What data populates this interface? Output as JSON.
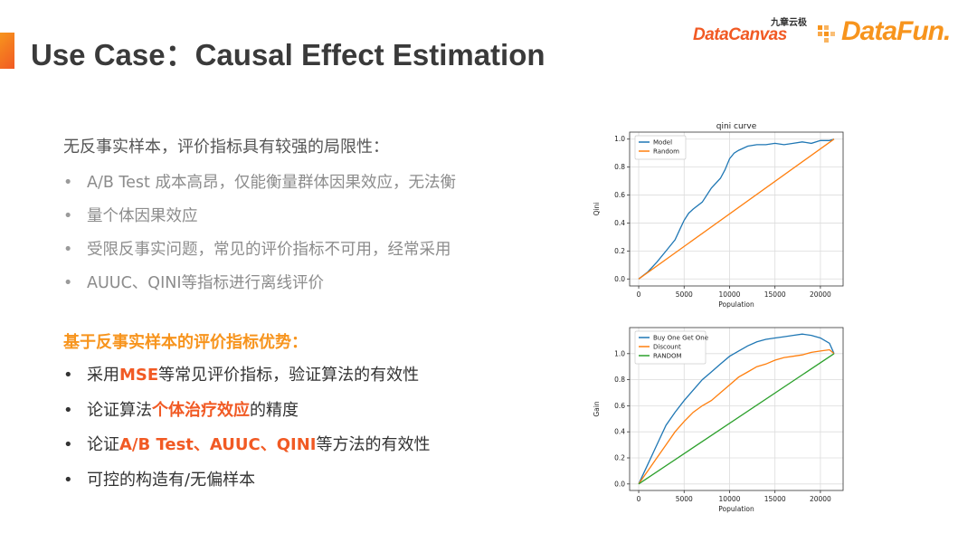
{
  "title": "Use Case：Causal Effect Estimation",
  "logos": {
    "datacanvas_cn": "九章云极",
    "datacanvas": "DataCanvas",
    "datafun": "DataFun."
  },
  "intro": "无反事实样本，评价指标具有较强的局限性：",
  "limitations": [
    {
      "line1": "A/B Test 成本高昂，仅能衡量群体因果效应，无法衡",
      "line2": "量个体因果效应"
    },
    {
      "line1": "受限反事实问题，常见的评价指标不可用，经常采用",
      "line2": "AUUC、QINI等指标进行离线评价"
    }
  ],
  "advantages_heading": "基于反事实样本的评价指标优势：",
  "advantages": [
    {
      "pre": "采用",
      "hl": "MSE",
      "post": "等常见评价指标，验证算法的有效性"
    },
    {
      "pre": "论证算法",
      "hl": "个体治疗效应",
      "post": "的精度"
    },
    {
      "pre": "论证",
      "hl": "A/B Test、AUUC、QINI",
      "post": "等方法的有效性"
    },
    {
      "pre": "可控的构造有/无偏样本",
      "hl": "",
      "post": ""
    }
  ],
  "chart_data": [
    {
      "type": "line",
      "title": "qini curve",
      "xlabel": "Population",
      "ylabel": "Qini",
      "xlim": [
        -1000,
        22500
      ],
      "ylim": [
        -0.05,
        1.05
      ],
      "xticks": [
        0,
        5000,
        10000,
        15000,
        20000
      ],
      "yticks": [
        0.0,
        0.2,
        0.4,
        0.6,
        0.8,
        1.0
      ],
      "ytick_labels": [
        "0.0",
        "0.2",
        "0.4",
        "0.6",
        "0.8",
        "1.0"
      ],
      "grid": true,
      "legend": "top-left",
      "series": [
        {
          "name": "Model",
          "color": "#1f77b4",
          "x": [
            0,
            1000,
            2000,
            3000,
            4000,
            4500,
            5000,
            5500,
            6000,
            7000,
            8000,
            9000,
            9500,
            10000,
            10500,
            11000,
            12000,
            13000,
            14000,
            15000,
            16000,
            17000,
            18000,
            19000,
            20000,
            21000,
            21500
          ],
          "y": [
            0.0,
            0.05,
            0.12,
            0.2,
            0.28,
            0.35,
            0.42,
            0.47,
            0.5,
            0.55,
            0.65,
            0.72,
            0.78,
            0.86,
            0.9,
            0.92,
            0.95,
            0.96,
            0.96,
            0.97,
            0.96,
            0.97,
            0.98,
            0.97,
            0.99,
            0.99,
            1.0
          ]
        },
        {
          "name": "Random",
          "color": "#ff7f0e",
          "x": [
            0,
            21500
          ],
          "y": [
            0.0,
            1.0
          ]
        }
      ]
    },
    {
      "type": "line",
      "title": "",
      "xlabel": "Population",
      "ylabel": "Gain",
      "xlim": [
        -1000,
        22500
      ],
      "ylim": [
        -0.05,
        1.2
      ],
      "xticks": [
        0,
        5000,
        10000,
        15000,
        20000
      ],
      "yticks": [
        0.0,
        0.2,
        0.4,
        0.6,
        0.8,
        1.0
      ],
      "ytick_labels": [
        "0.0",
        "0.2",
        "0.4",
        "0.6",
        "0.8",
        "1.0"
      ],
      "grid": true,
      "legend": "top-left",
      "series": [
        {
          "name": "Buy One Get One",
          "color": "#1f77b4",
          "x": [
            0,
            1000,
            2000,
            3000,
            4000,
            5000,
            6000,
            7000,
            8000,
            9000,
            10000,
            11000,
            12000,
            13000,
            14000,
            15000,
            16000,
            17000,
            18000,
            19000,
            20000,
            21000,
            21500
          ],
          "y": [
            0.0,
            0.15,
            0.3,
            0.45,
            0.55,
            0.64,
            0.72,
            0.8,
            0.86,
            0.92,
            0.98,
            1.02,
            1.06,
            1.09,
            1.11,
            1.12,
            1.13,
            1.14,
            1.15,
            1.14,
            1.12,
            1.08,
            1.0
          ]
        },
        {
          "name": "Discount",
          "color": "#ff7f0e",
          "x": [
            0,
            1000,
            2000,
            3000,
            4000,
            5000,
            6000,
            7000,
            8000,
            9000,
            10000,
            11000,
            12000,
            13000,
            14000,
            15000,
            16000,
            17000,
            18000,
            19000,
            20000,
            21000,
            21500
          ],
          "y": [
            0.0,
            0.1,
            0.2,
            0.3,
            0.4,
            0.48,
            0.55,
            0.6,
            0.64,
            0.7,
            0.76,
            0.82,
            0.86,
            0.9,
            0.92,
            0.95,
            0.97,
            0.98,
            0.99,
            1.01,
            1.02,
            1.03,
            1.0
          ]
        },
        {
          "name": "RANDOM",
          "color": "#2ca02c",
          "x": [
            0,
            21500
          ],
          "y": [
            0.0,
            1.0
          ]
        }
      ]
    }
  ]
}
